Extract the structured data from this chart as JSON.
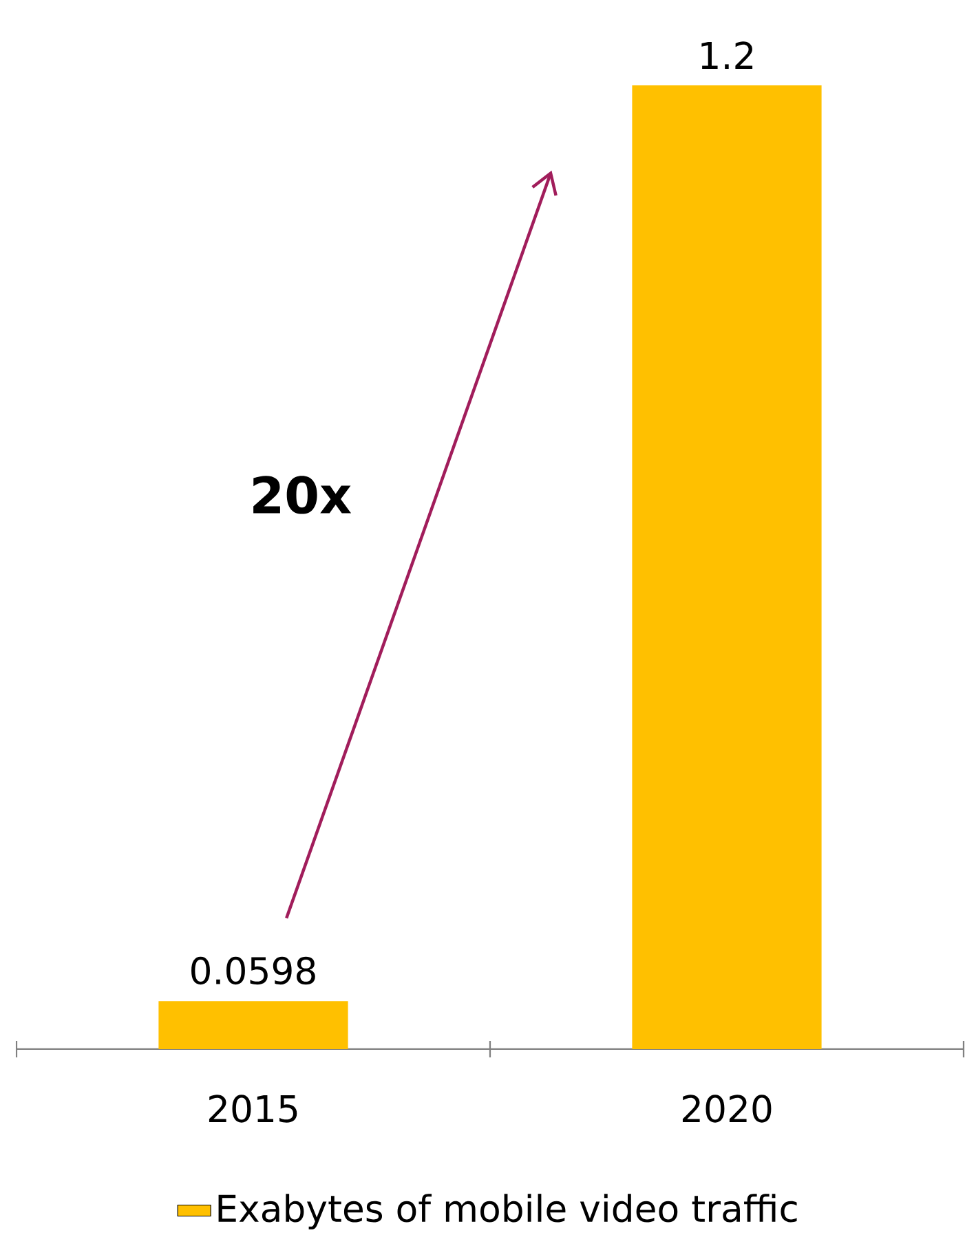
{
  "chart_data": {
    "type": "bar",
    "categories": [
      "2015",
      "2020"
    ],
    "series": [
      {
        "name": "Exabytes of mobile video traffic",
        "color": "#ffc000",
        "values": [
          0.0598,
          1.2
        ]
      }
    ],
    "data_labels": true,
    "legend": "bottom",
    "tick_labels": "x",
    "annotations": [
      "**20x**"
    ]
  }
}
